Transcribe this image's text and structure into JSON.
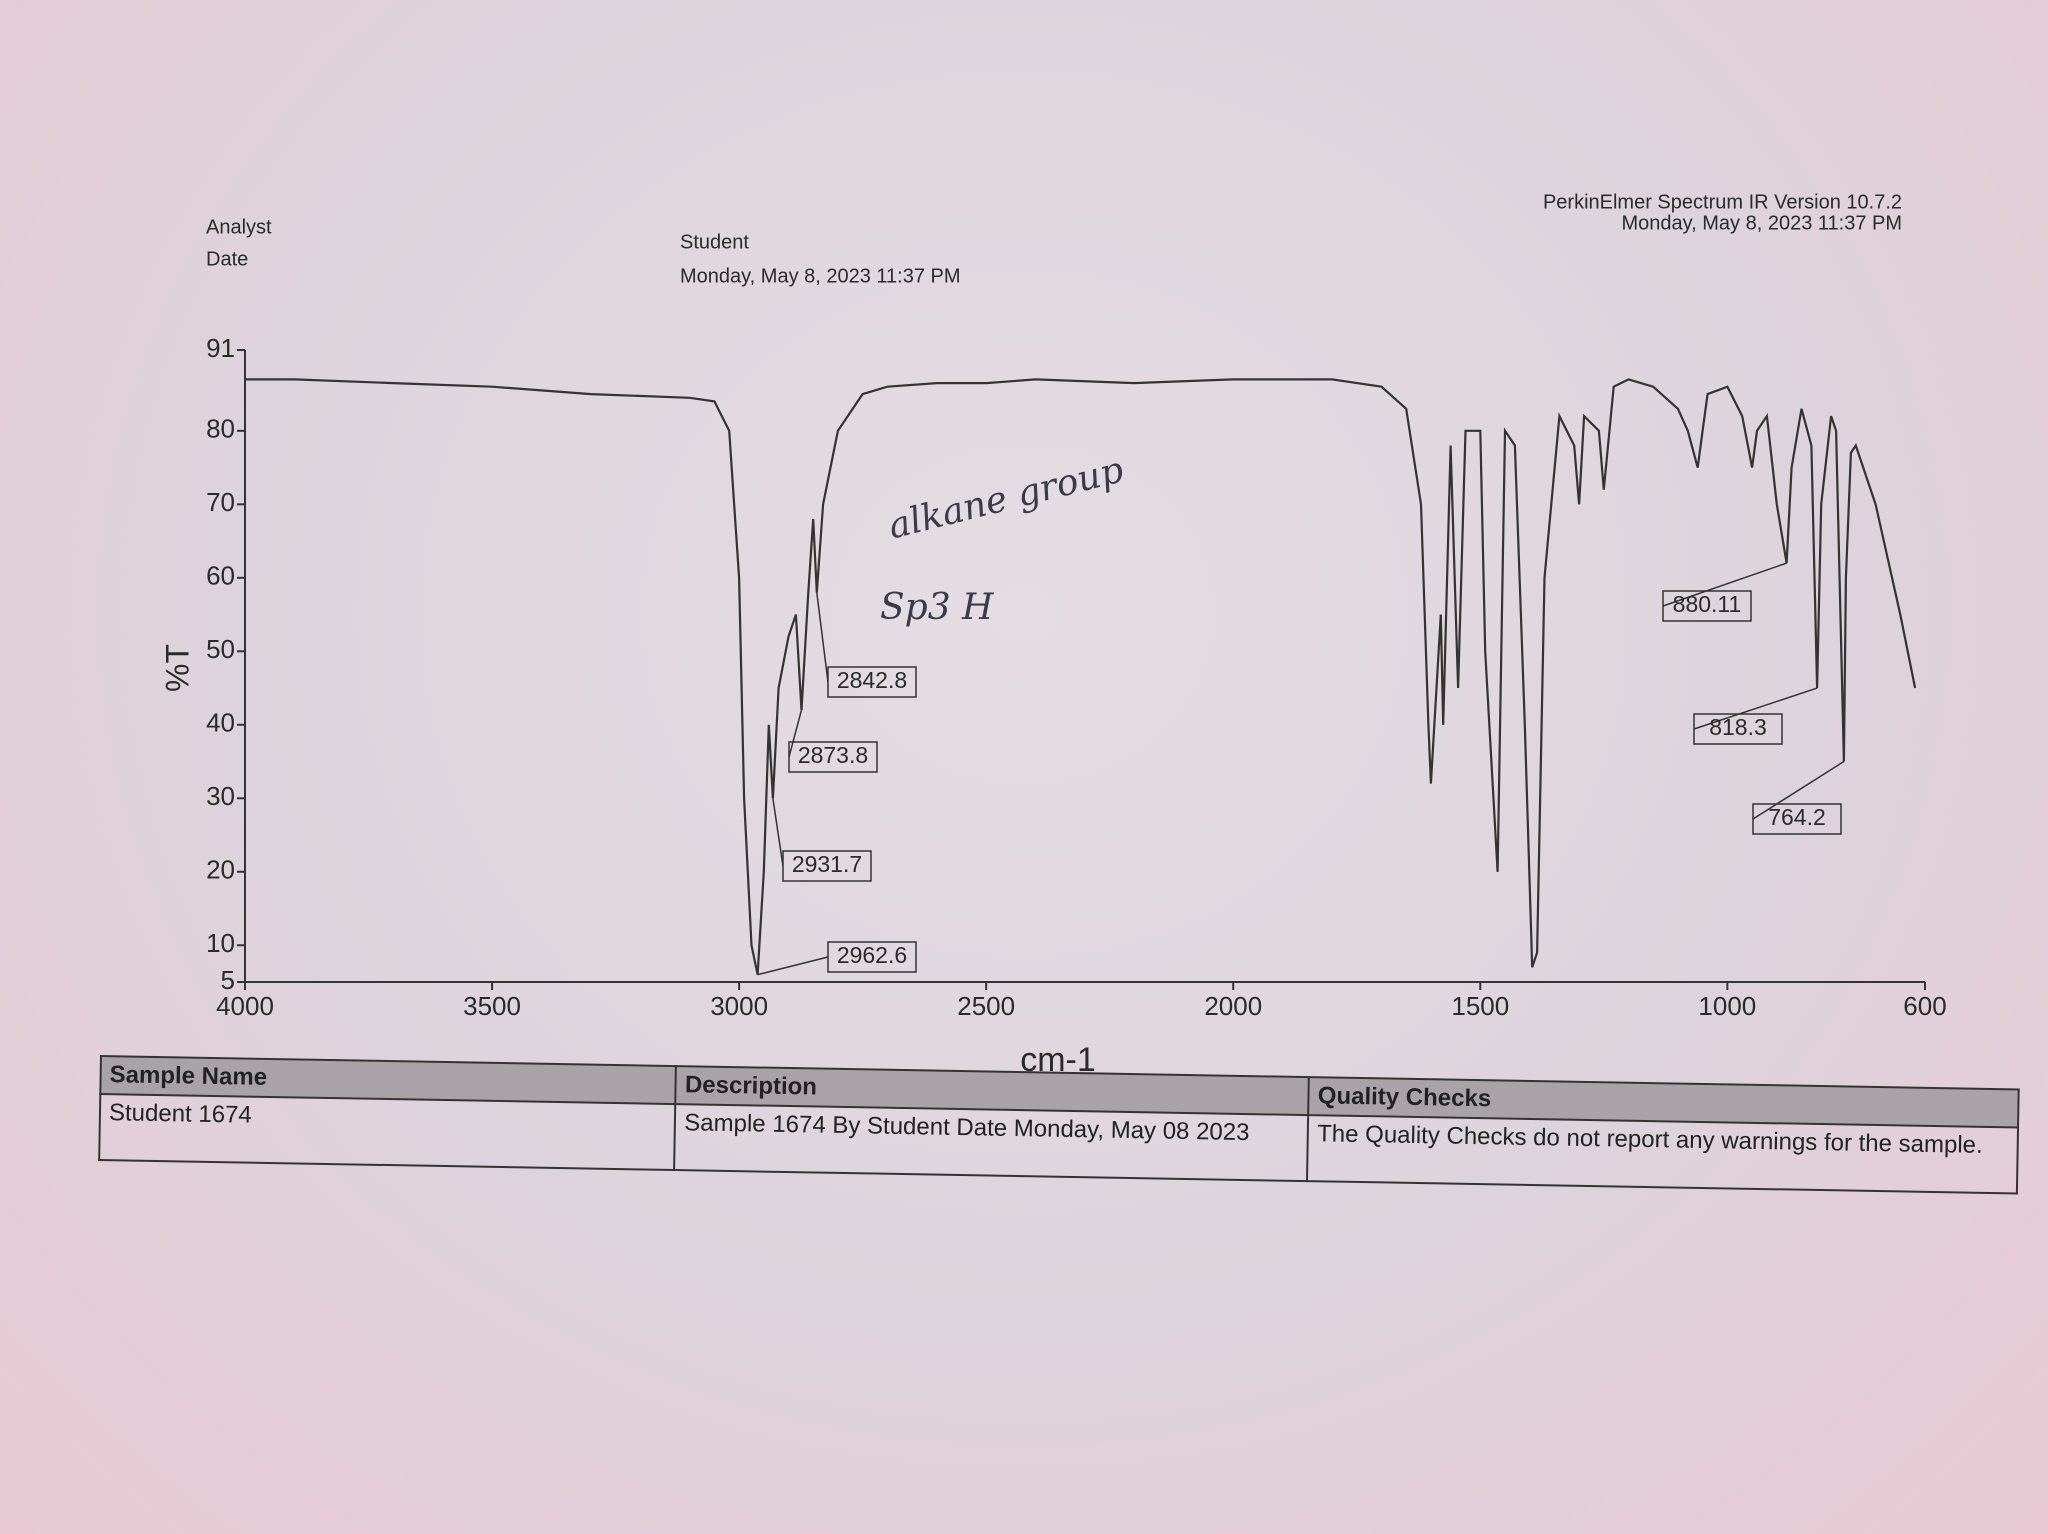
{
  "header": {
    "analyst_label": "Analyst",
    "date_label": "Date",
    "analyst": "Student",
    "date": "Monday, May 8, 2023 11:37 PM",
    "software": "PerkinElmer Spectrum IR Version 10.7.2",
    "printed": "Monday, May 8, 2023 11:37 PM"
  },
  "chart_data": {
    "type": "line",
    "xlabel": "cm-1",
    "ylabel": "%T",
    "color": "#333333",
    "x": [
      4000,
      3900,
      3700,
      3500,
      3300,
      3100,
      3050,
      3020,
      3000,
      2990,
      2975,
      2962.6,
      2950,
      2940,
      2931.7,
      2920,
      2900,
      2885,
      2873.8,
      2860,
      2850,
      2842.8,
      2830,
      2800,
      2750,
      2700,
      2600,
      2500,
      2400,
      2200,
      2000,
      1800,
      1700,
      1650,
      1620,
      1605,
      1600,
      1580,
      1575,
      1560,
      1545,
      1530,
      1515,
      1500,
      1490,
      1465,
      1450,
      1430,
      1410,
      1395,
      1385,
      1370,
      1340,
      1310,
      1300,
      1290,
      1260,
      1250,
      1230,
      1200,
      1150,
      1100,
      1080,
      1060,
      1050,
      1040,
      1000,
      970,
      950,
      940,
      920,
      900,
      880.11,
      870,
      850,
      830,
      818.3,
      810,
      790,
      780,
      764.2,
      760,
      750,
      740,
      700,
      650,
      620
    ],
    "values": [
      87,
      87,
      86.5,
      86,
      85,
      84.5,
      84,
      80,
      60,
      30,
      10,
      6,
      20,
      40,
      30,
      45,
      52,
      55,
      42,
      58,
      68,
      58,
      70,
      80,
      85,
      86,
      86.5,
      86.5,
      87,
      86.5,
      87,
      87,
      86,
      83,
      70,
      40,
      32,
      55,
      40,
      78,
      45,
      80,
      80,
      80,
      50,
      20,
      80,
      78,
      40,
      7,
      9,
      60,
      82,
      78,
      70,
      82,
      80,
      72,
      86,
      87,
      86,
      83,
      80,
      75,
      80,
      85,
      86,
      82,
      75,
      80,
      82,
      70,
      62,
      75,
      83,
      78,
      45,
      70,
      82,
      80,
      35,
      60,
      77,
      78,
      70,
      55,
      45
    ],
    "xlim": [
      4000,
      600
    ],
    "ylim": [
      5,
      91
    ],
    "xticks": [
      4000,
      3500,
      3000,
      2500,
      2000,
      1500,
      1000,
      600
    ],
    "yticks": [
      5,
      10,
      20,
      30,
      40,
      50,
      60,
      70,
      80,
      91
    ],
    "peaks": [
      2962.6,
      2931.7,
      2873.8,
      2842.8,
      880.11,
      818.3,
      764.2
    ],
    "annotations": [
      "alkane group",
      "Sp3 H"
    ]
  },
  "table": {
    "headers": [
      "Sample Name",
      "Description",
      "Quality Checks"
    ],
    "rows": [
      [
        "Student 1674",
        "Sample 1674 By Student Date Monday, May 08 2023",
        "The Quality Checks do not report any warnings for the sample."
      ]
    ]
  }
}
